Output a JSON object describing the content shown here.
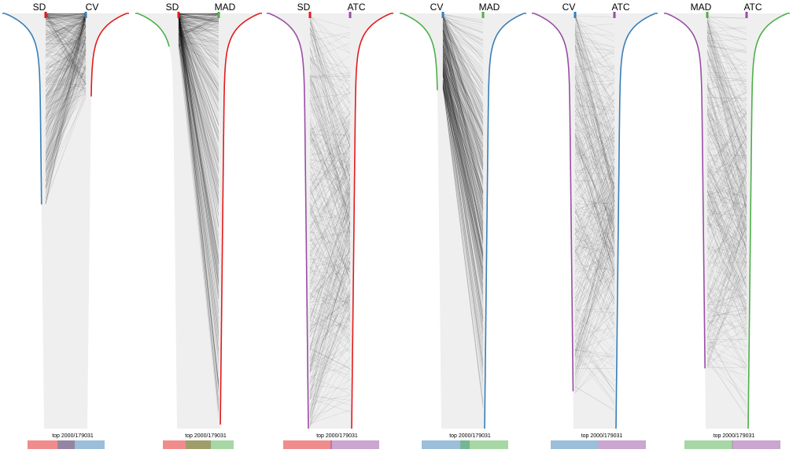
{
  "chart_data": {
    "type": "rank-comparison",
    "top_label": "top 2000/179031",
    "top_n": 2000,
    "total": 179031,
    "colors": {
      "SD": "#E41A1C",
      "CV": "#377EB8",
      "MAD": "#4DAF4A",
      "ATC": "#984EA3"
    },
    "panels": [
      {
        "left": "SD",
        "right": "CV",
        "overlap": 730
      },
      {
        "left": "SD",
        "right": "MAD",
        "overlap": 1050
      },
      {
        "left": "SD",
        "right": "ATC",
        "overlap": 60
      },
      {
        "left": "CV",
        "right": "MAD",
        "overlap": 390
      },
      {
        "left": "CV",
        "right": "ATC",
        "overlap": 0
      },
      {
        "left": "MAD",
        "right": "ATC",
        "overlap": 30
      }
    ]
  }
}
